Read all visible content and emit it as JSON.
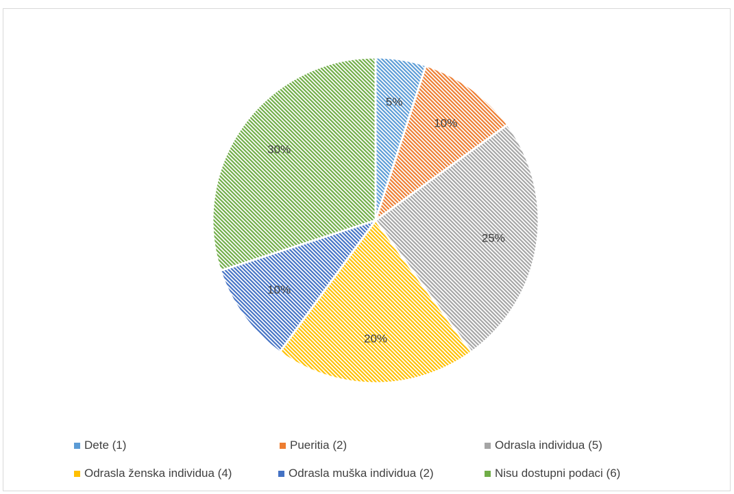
{
  "chart_data": {
    "type": "pie",
    "title": "",
    "categories": [
      "Dete (1)",
      "Pueritia (2)",
      "Odrasla individua (5)",
      "Odrasla ženska individua (4)",
      "Odrasla muška individua (2)",
      "Nisu dostupni podaci (6)"
    ],
    "values": [
      1,
      2,
      5,
      4,
      2,
      6
    ],
    "labels": [
      "5%",
      "10%",
      "25%",
      "20%",
      "10%",
      "30%"
    ],
    "colors": [
      "#5b9bd5",
      "#ed7d31",
      "#a5a5a5",
      "#ffc000",
      "#4472c4",
      "#70ad47"
    ],
    "legend_position": "bottom",
    "pattern": "diagonal-stripes"
  }
}
